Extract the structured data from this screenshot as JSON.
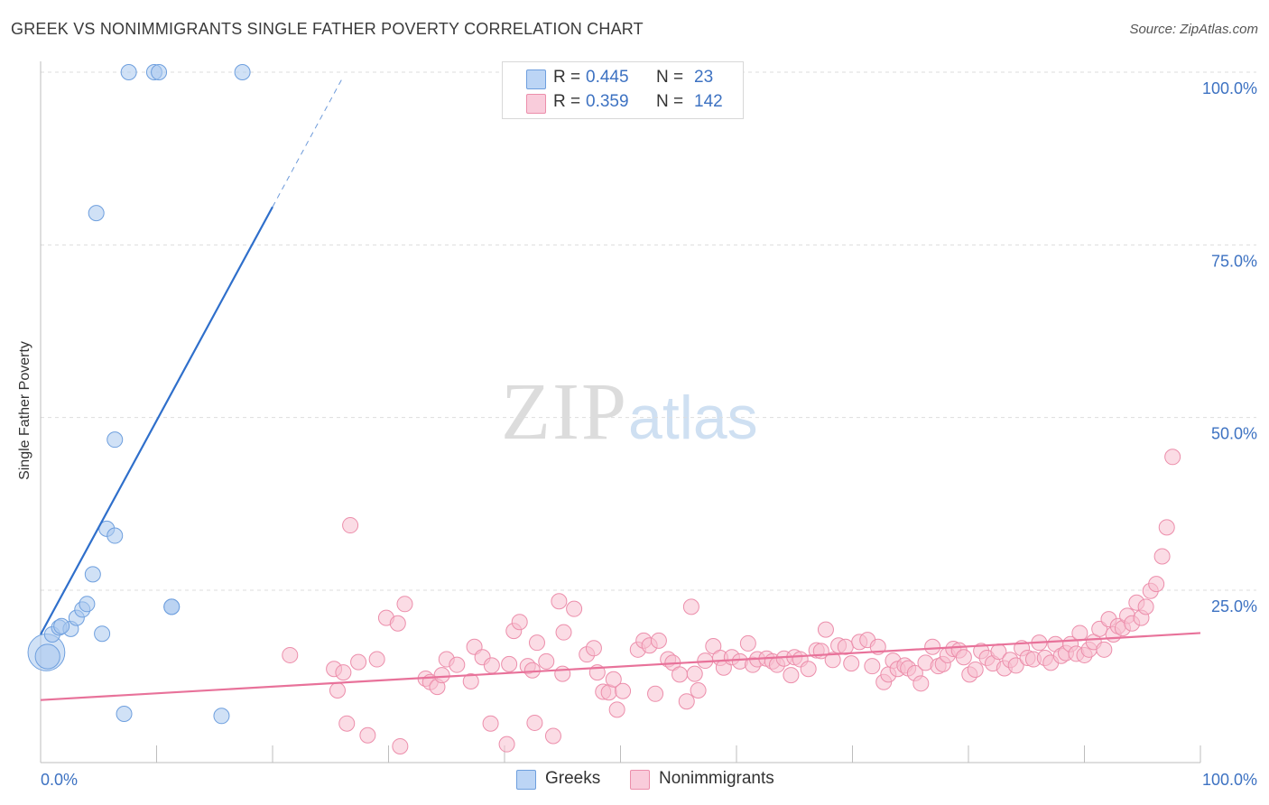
{
  "header": {
    "title": "GREEK VS NONIMMIGRANTS SINGLE FATHER POVERTY CORRELATION CHART",
    "source": "Source: ZipAtlas.com"
  },
  "watermark": {
    "zip": "ZIP",
    "atlas": "atlas"
  },
  "legend": {
    "rows": [
      {
        "r_label": "R =",
        "r_value": "0.445",
        "n_label": "N =",
        "n_value": "23"
      },
      {
        "r_label": "R =",
        "r_value": "0.359",
        "n_label": "N =",
        "n_value": "142"
      }
    ],
    "bottom": [
      "Greeks",
      "Nonimmigrants"
    ]
  },
  "colors": {
    "greeks_fill": "#a9c8ef",
    "greeks_stroke": "#6e9fde",
    "greeks_line": "#2f6fcb",
    "nonimm_fill": "#f7bfd0",
    "nonimm_stroke": "#ec8eab",
    "nonimm_line": "#e8729a",
    "tick_text": "#3d72c2",
    "grid": "#dddddd"
  },
  "chart_data": {
    "type": "scatter",
    "title": "GREEK VS NONIMMIGRANTS SINGLE FATHER POVERTY CORRELATION CHART",
    "xlabel": "",
    "ylabel": "Single Father Poverty",
    "xlim": [
      0,
      100
    ],
    "ylim": [
      0,
      104
    ],
    "x_tick_labels": [
      "0.0%",
      "100.0%"
    ],
    "y_ticks": [
      25,
      50,
      75,
      100
    ],
    "y_tick_labels": [
      "25.0%",
      "50.0%",
      "75.0%",
      "100.0%"
    ],
    "grid": true,
    "legend_position": "top-center",
    "series": [
      {
        "name": "Greeks",
        "r": 0.445,
        "n": 23,
        "trend": {
          "x0": 0,
          "y0": 18.6,
          "x1": 20,
          "y1": 80.5,
          "dashed_to_x": 26.0
        },
        "points": [
          [
            0.5,
            16.0,
            2.4
          ],
          [
            0.6,
            15.4,
            1.6
          ],
          [
            1.0,
            18.6,
            1
          ],
          [
            1.6,
            19.6,
            1
          ],
          [
            2.6,
            19.4,
            1
          ],
          [
            3.1,
            21.0,
            1
          ],
          [
            3.6,
            22.2,
            1
          ],
          [
            4.0,
            23.0,
            1
          ],
          [
            4.5,
            27.3,
            1
          ],
          [
            5.3,
            18.7,
            1
          ],
          [
            5.7,
            33.9,
            1
          ],
          [
            6.4,
            32.9,
            1
          ],
          [
            6.4,
            46.8,
            1
          ],
          [
            7.2,
            7.1,
            1
          ],
          [
            7.6,
            100,
            1
          ],
          [
            9.8,
            100,
            1
          ],
          [
            10.2,
            100,
            1
          ],
          [
            11.3,
            22.6,
            1
          ],
          [
            11.3,
            22.6,
            1
          ],
          [
            15.6,
            6.8,
            1
          ],
          [
            17.4,
            100,
            1
          ],
          [
            4.8,
            79.6,
            1
          ],
          [
            1.8,
            19.8,
            1
          ]
        ]
      },
      {
        "name": "Nonimmigrants",
        "r": 0.359,
        "n": 142,
        "trend": {
          "x0": 0,
          "y0": 9.1,
          "x1": 100,
          "y1": 18.8
        },
        "points": [
          [
            21.5,
            15.6
          ],
          [
            25.3,
            13.6
          ],
          [
            25.6,
            10.5
          ],
          [
            26.1,
            13.1
          ],
          [
            26.4,
            5.7
          ],
          [
            26.7,
            34.4
          ],
          [
            27.4,
            14.6
          ],
          [
            28.2,
            4.0
          ],
          [
            29.0,
            15.0
          ],
          [
            29.8,
            21.0
          ],
          [
            30.8,
            20.2
          ],
          [
            31.0,
            2.4
          ],
          [
            31.4,
            23.0
          ],
          [
            33.2,
            12.2
          ],
          [
            33.6,
            11.7
          ],
          [
            34.2,
            11.0
          ],
          [
            34.6,
            12.7
          ],
          [
            35.0,
            15.0
          ],
          [
            37.1,
            11.8
          ],
          [
            37.4,
            16.8
          ],
          [
            38.1,
            15.3
          ],
          [
            38.8,
            5.7
          ],
          [
            38.9,
            14.1
          ],
          [
            40.2,
            2.7
          ],
          [
            40.4,
            14.3
          ],
          [
            40.8,
            19.1
          ],
          [
            41.3,
            20.4
          ],
          [
            42.0,
            14.0
          ],
          [
            42.4,
            13.4
          ],
          [
            42.6,
            5.8
          ],
          [
            42.8,
            17.4
          ],
          [
            43.6,
            14.7
          ],
          [
            44.2,
            3.9
          ],
          [
            44.7,
            23.4
          ],
          [
            45.0,
            12.9
          ],
          [
            45.1,
            18.9
          ],
          [
            46.0,
            22.3
          ],
          [
            47.1,
            15.7
          ],
          [
            47.7,
            16.6
          ],
          [
            48.0,
            13.1
          ],
          [
            48.5,
            10.3
          ],
          [
            49.0,
            10.2
          ],
          [
            49.4,
            12.1
          ],
          [
            49.7,
            7.7
          ],
          [
            50.2,
            10.4
          ],
          [
            51.5,
            16.4
          ],
          [
            52.0,
            17.7
          ],
          [
            52.5,
            17.0
          ],
          [
            53.0,
            10.0
          ],
          [
            53.3,
            17.7
          ],
          [
            54.1,
            15.0
          ],
          [
            54.5,
            14.5
          ],
          [
            55.1,
            12.8
          ],
          [
            55.7,
            8.9
          ],
          [
            56.1,
            22.6
          ],
          [
            56.4,
            12.9
          ],
          [
            56.7,
            10.5
          ],
          [
            57.3,
            14.8
          ],
          [
            58.0,
            16.9
          ],
          [
            58.6,
            15.2
          ],
          [
            58.9,
            13.8
          ],
          [
            59.6,
            15.3
          ],
          [
            60.3,
            14.7
          ],
          [
            61.0,
            17.3
          ],
          [
            61.4,
            14.2
          ],
          [
            61.8,
            15.0
          ],
          [
            62.6,
            15.1
          ],
          [
            63.1,
            14.7
          ],
          [
            63.5,
            14.2
          ],
          [
            64.1,
            15.1
          ],
          [
            64.7,
            12.7
          ],
          [
            65.0,
            15.3
          ],
          [
            65.5,
            15.0
          ],
          [
            66.2,
            13.6
          ],
          [
            66.9,
            16.3
          ],
          [
            67.3,
            16.2
          ],
          [
            67.7,
            19.3
          ],
          [
            68.3,
            14.9
          ],
          [
            68.8,
            17.0
          ],
          [
            69.4,
            16.8
          ],
          [
            69.9,
            14.4
          ],
          [
            70.6,
            17.5
          ],
          [
            71.3,
            17.8
          ],
          [
            71.7,
            14.0
          ],
          [
            72.2,
            16.8
          ],
          [
            72.7,
            11.7
          ],
          [
            73.1,
            12.8
          ],
          [
            73.5,
            14.8
          ],
          [
            73.9,
            13.6
          ],
          [
            74.5,
            14.1
          ],
          [
            74.8,
            13.7
          ],
          [
            75.4,
            13.0
          ],
          [
            75.9,
            11.5
          ],
          [
            76.3,
            14.5
          ],
          [
            76.9,
            16.8
          ],
          [
            77.4,
            14.0
          ],
          [
            77.8,
            14.3
          ],
          [
            78.2,
            15.6
          ],
          [
            78.7,
            16.5
          ],
          [
            79.2,
            16.3
          ],
          [
            79.6,
            15.3
          ],
          [
            80.1,
            12.8
          ],
          [
            80.6,
            13.5
          ],
          [
            81.1,
            16.2
          ],
          [
            81.6,
            15.2
          ],
          [
            82.1,
            14.4
          ],
          [
            82.6,
            16.1
          ],
          [
            83.1,
            13.7
          ],
          [
            83.6,
            14.9
          ],
          [
            84.1,
            14.1
          ],
          [
            84.6,
            16.6
          ],
          [
            85.1,
            15.2
          ],
          [
            85.6,
            15.0
          ],
          [
            86.1,
            17.4
          ],
          [
            86.6,
            15.2
          ],
          [
            87.1,
            14.5
          ],
          [
            87.5,
            17.2
          ],
          [
            88.0,
            15.5
          ],
          [
            88.4,
            15.9
          ],
          [
            88.8,
            17.2
          ],
          [
            89.3,
            15.8
          ],
          [
            89.6,
            18.8
          ],
          [
            90.0,
            15.6
          ],
          [
            90.4,
            16.4
          ],
          [
            90.8,
            17.5
          ],
          [
            91.3,
            19.4
          ],
          [
            91.7,
            16.4
          ],
          [
            92.1,
            20.8
          ],
          [
            92.5,
            18.6
          ],
          [
            92.9,
            19.8
          ],
          [
            93.3,
            19.5
          ],
          [
            93.7,
            21.3
          ],
          [
            94.1,
            20.2
          ],
          [
            94.5,
            23.2
          ],
          [
            94.9,
            21.0
          ],
          [
            95.3,
            22.6
          ],
          [
            95.7,
            24.9
          ],
          [
            96.2,
            25.9
          ],
          [
            96.7,
            29.9
          ],
          [
            97.1,
            34.1
          ],
          [
            97.6,
            44.3
          ],
          [
            35.9,
            14.2
          ]
        ]
      }
    ]
  }
}
